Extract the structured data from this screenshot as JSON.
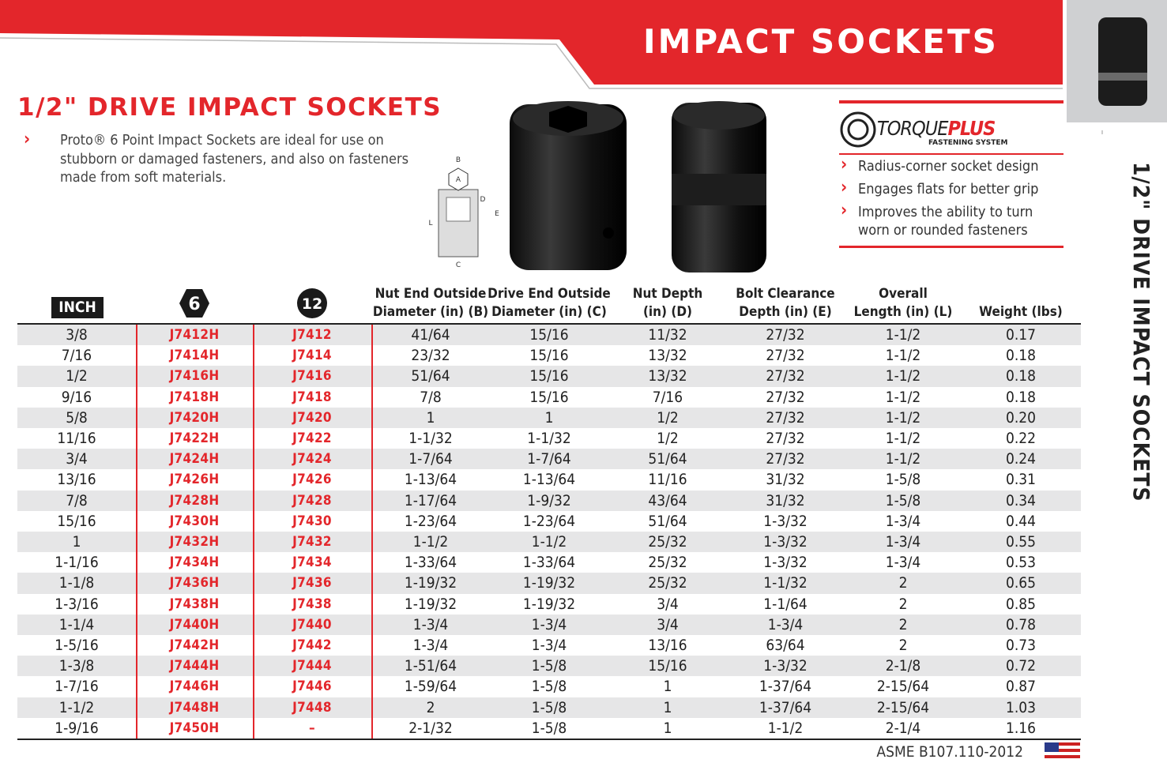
{
  "header": {
    "title": "IMPACT SOCKETS"
  },
  "section": {
    "title": "1/2\" DRIVE IMPACT SOCKETS",
    "intro": "Proto® 6 Point Impact Sockets are ideal for use on stubborn or damaged fasteners, and also on fasteners made from soft materials."
  },
  "side_title": "1/2\" DRIVE IMPACT SOCKETS",
  "diagram": {
    "labels": [
      "B",
      "A",
      "D",
      "E",
      "L",
      "C"
    ]
  },
  "torqueplus": {
    "logo": "TORQUE",
    "logo_accent": "PLUS",
    "tagline": "FASTENING SYSTEM",
    "features": [
      "Radius-corner socket design",
      "Engages flats for better grip",
      "Improves the ability to turn worn or rounded fasteners"
    ]
  },
  "table": {
    "header": [
      [
        "INCH"
      ],
      [
        "6"
      ],
      [
        "12"
      ],
      [
        "Nut End Outside",
        "Diameter (in) (B)"
      ],
      [
        "Drive End Outside",
        "Diameter (in) (C)"
      ],
      [
        "Nut Depth",
        "(in) (D)"
      ],
      [
        "Bolt Clearance",
        "Depth (in) (E)"
      ],
      [
        "Overall",
        "Length (in) (L)"
      ],
      [
        "Weight (lbs)"
      ]
    ],
    "rows": [
      [
        "3/8",
        "J7412H",
        "J7412",
        "41/64",
        "15/16",
        "11/32",
        "27/32",
        "1-1/2",
        "0.17"
      ],
      [
        "7/16",
        "J7414H",
        "J7414",
        "23/32",
        "15/16",
        "13/32",
        "27/32",
        "1-1/2",
        "0.18"
      ],
      [
        "1/2",
        "J7416H",
        "J7416",
        "51/64",
        "15/16",
        "13/32",
        "27/32",
        "1-1/2",
        "0.18"
      ],
      [
        "9/16",
        "J7418H",
        "J7418",
        "7/8",
        "15/16",
        "7/16",
        "27/32",
        "1-1/2",
        "0.18"
      ],
      [
        "5/8",
        "J7420H",
        "J7420",
        "1",
        "1",
        "1/2",
        "27/32",
        "1-1/2",
        "0.20"
      ],
      [
        "11/16",
        "J7422H",
        "J7422",
        "1-1/32",
        "1-1/32",
        "1/2",
        "27/32",
        "1-1/2",
        "0.22"
      ],
      [
        "3/4",
        "J7424H",
        "J7424",
        "1-7/64",
        "1-7/64",
        "51/64",
        "27/32",
        "1-1/2",
        "0.24"
      ],
      [
        "13/16",
        "J7426H",
        "J7426",
        "1-13/64",
        "1-13/64",
        "11/16",
        "31/32",
        "1-5/8",
        "0.31"
      ],
      [
        "7/8",
        "J7428H",
        "J7428",
        "1-17/64",
        "1-9/32",
        "43/64",
        "31/32",
        "1-5/8",
        "0.34"
      ],
      [
        "15/16",
        "J7430H",
        "J7430",
        "1-23/64",
        "1-23/64",
        "51/64",
        "1-3/32",
        "1-3/4",
        "0.44"
      ],
      [
        "1",
        "J7432H",
        "J7432",
        "1-1/2",
        "1-1/2",
        "25/32",
        "1-3/32",
        "1-3/4",
        "0.55"
      ],
      [
        "1-1/16",
        "J7434H",
        "J7434",
        "1-33/64",
        "1-33/64",
        "25/32",
        "1-3/32",
        "1-3/4",
        "0.53"
      ],
      [
        "1-1/8",
        "J7436H",
        "J7436",
        "1-19/32",
        "1-19/32",
        "25/32",
        "1-1/32",
        "2",
        "0.65"
      ],
      [
        "1-3/16",
        "J7438H",
        "J7438",
        "1-19/32",
        "1-19/32",
        "3/4",
        "1-1/64",
        "2",
        "0.85"
      ],
      [
        "1-1/4",
        "J7440H",
        "J7440",
        "1-3/4",
        "1-3/4",
        "3/4",
        "1-3/4",
        "2",
        "0.78"
      ],
      [
        "1-5/16",
        "J7442H",
        "J7442",
        "1-3/4",
        "1-3/4",
        "13/16",
        "63/64",
        "2",
        "0.73"
      ],
      [
        "1-3/8",
        "J7444H",
        "J7444",
        "1-51/64",
        "1-5/8",
        "15/16",
        "1-3/32",
        "2-1/8",
        "0.72"
      ],
      [
        "1-7/16",
        "J7446H",
        "J7446",
        "1-59/64",
        "1-5/8",
        "1",
        "1-37/64",
        "2-15/64",
        "0.87"
      ],
      [
        "1-1/2",
        "J7448H",
        "J7448",
        "2",
        "1-5/8",
        "1",
        "1-37/64",
        "2-15/64",
        "1.03"
      ],
      [
        "1-9/16",
        "J7450H",
        "–",
        "2-1/32",
        "1-5/8",
        "1",
        "1-1/2",
        "2-1/4",
        "1.16"
      ]
    ]
  },
  "footer": {
    "standard": "ASME B107.110-2012"
  }
}
